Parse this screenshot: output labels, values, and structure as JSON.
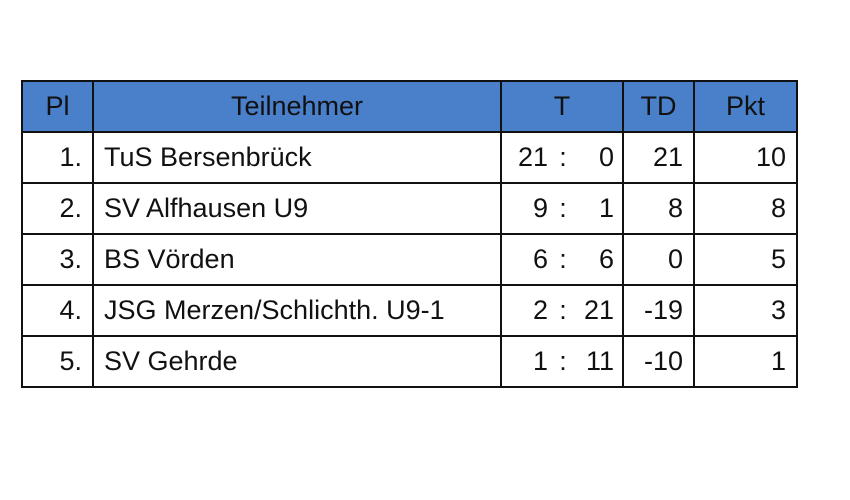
{
  "headers": {
    "pl": "Pl",
    "name": "Teilnehmer",
    "t": "T",
    "td": "TD",
    "pkt": "Pkt"
  },
  "separator": ":",
  "rows": [
    {
      "pl": "1.",
      "name": " TuS Bersenbrück",
      "goals_for": "21",
      "goals_against": "0",
      "td": "21",
      "pkt": "10"
    },
    {
      "pl": "2.",
      "name": "SV Alfhausen U9",
      "goals_for": "9",
      "goals_against": "1",
      "td": "8",
      "pkt": "8"
    },
    {
      "pl": "3.",
      "name": "BS Vörden",
      "goals_for": "6",
      "goals_against": "6",
      "td": "0",
      "pkt": "5"
    },
    {
      "pl": "4.",
      "name": "JSG Merzen/Schlichth. U9-1",
      "goals_for": "2",
      "goals_against": "21",
      "td": "-19",
      "pkt": "3"
    },
    {
      "pl": "5.",
      "name": "SV Gehrde",
      "goals_for": "1",
      "goals_against": "11",
      "td": "-10",
      "pkt": "1"
    }
  ],
  "colors": {
    "header_bg": "#4a7fc9",
    "border": "#111111",
    "text": "#111111"
  }
}
